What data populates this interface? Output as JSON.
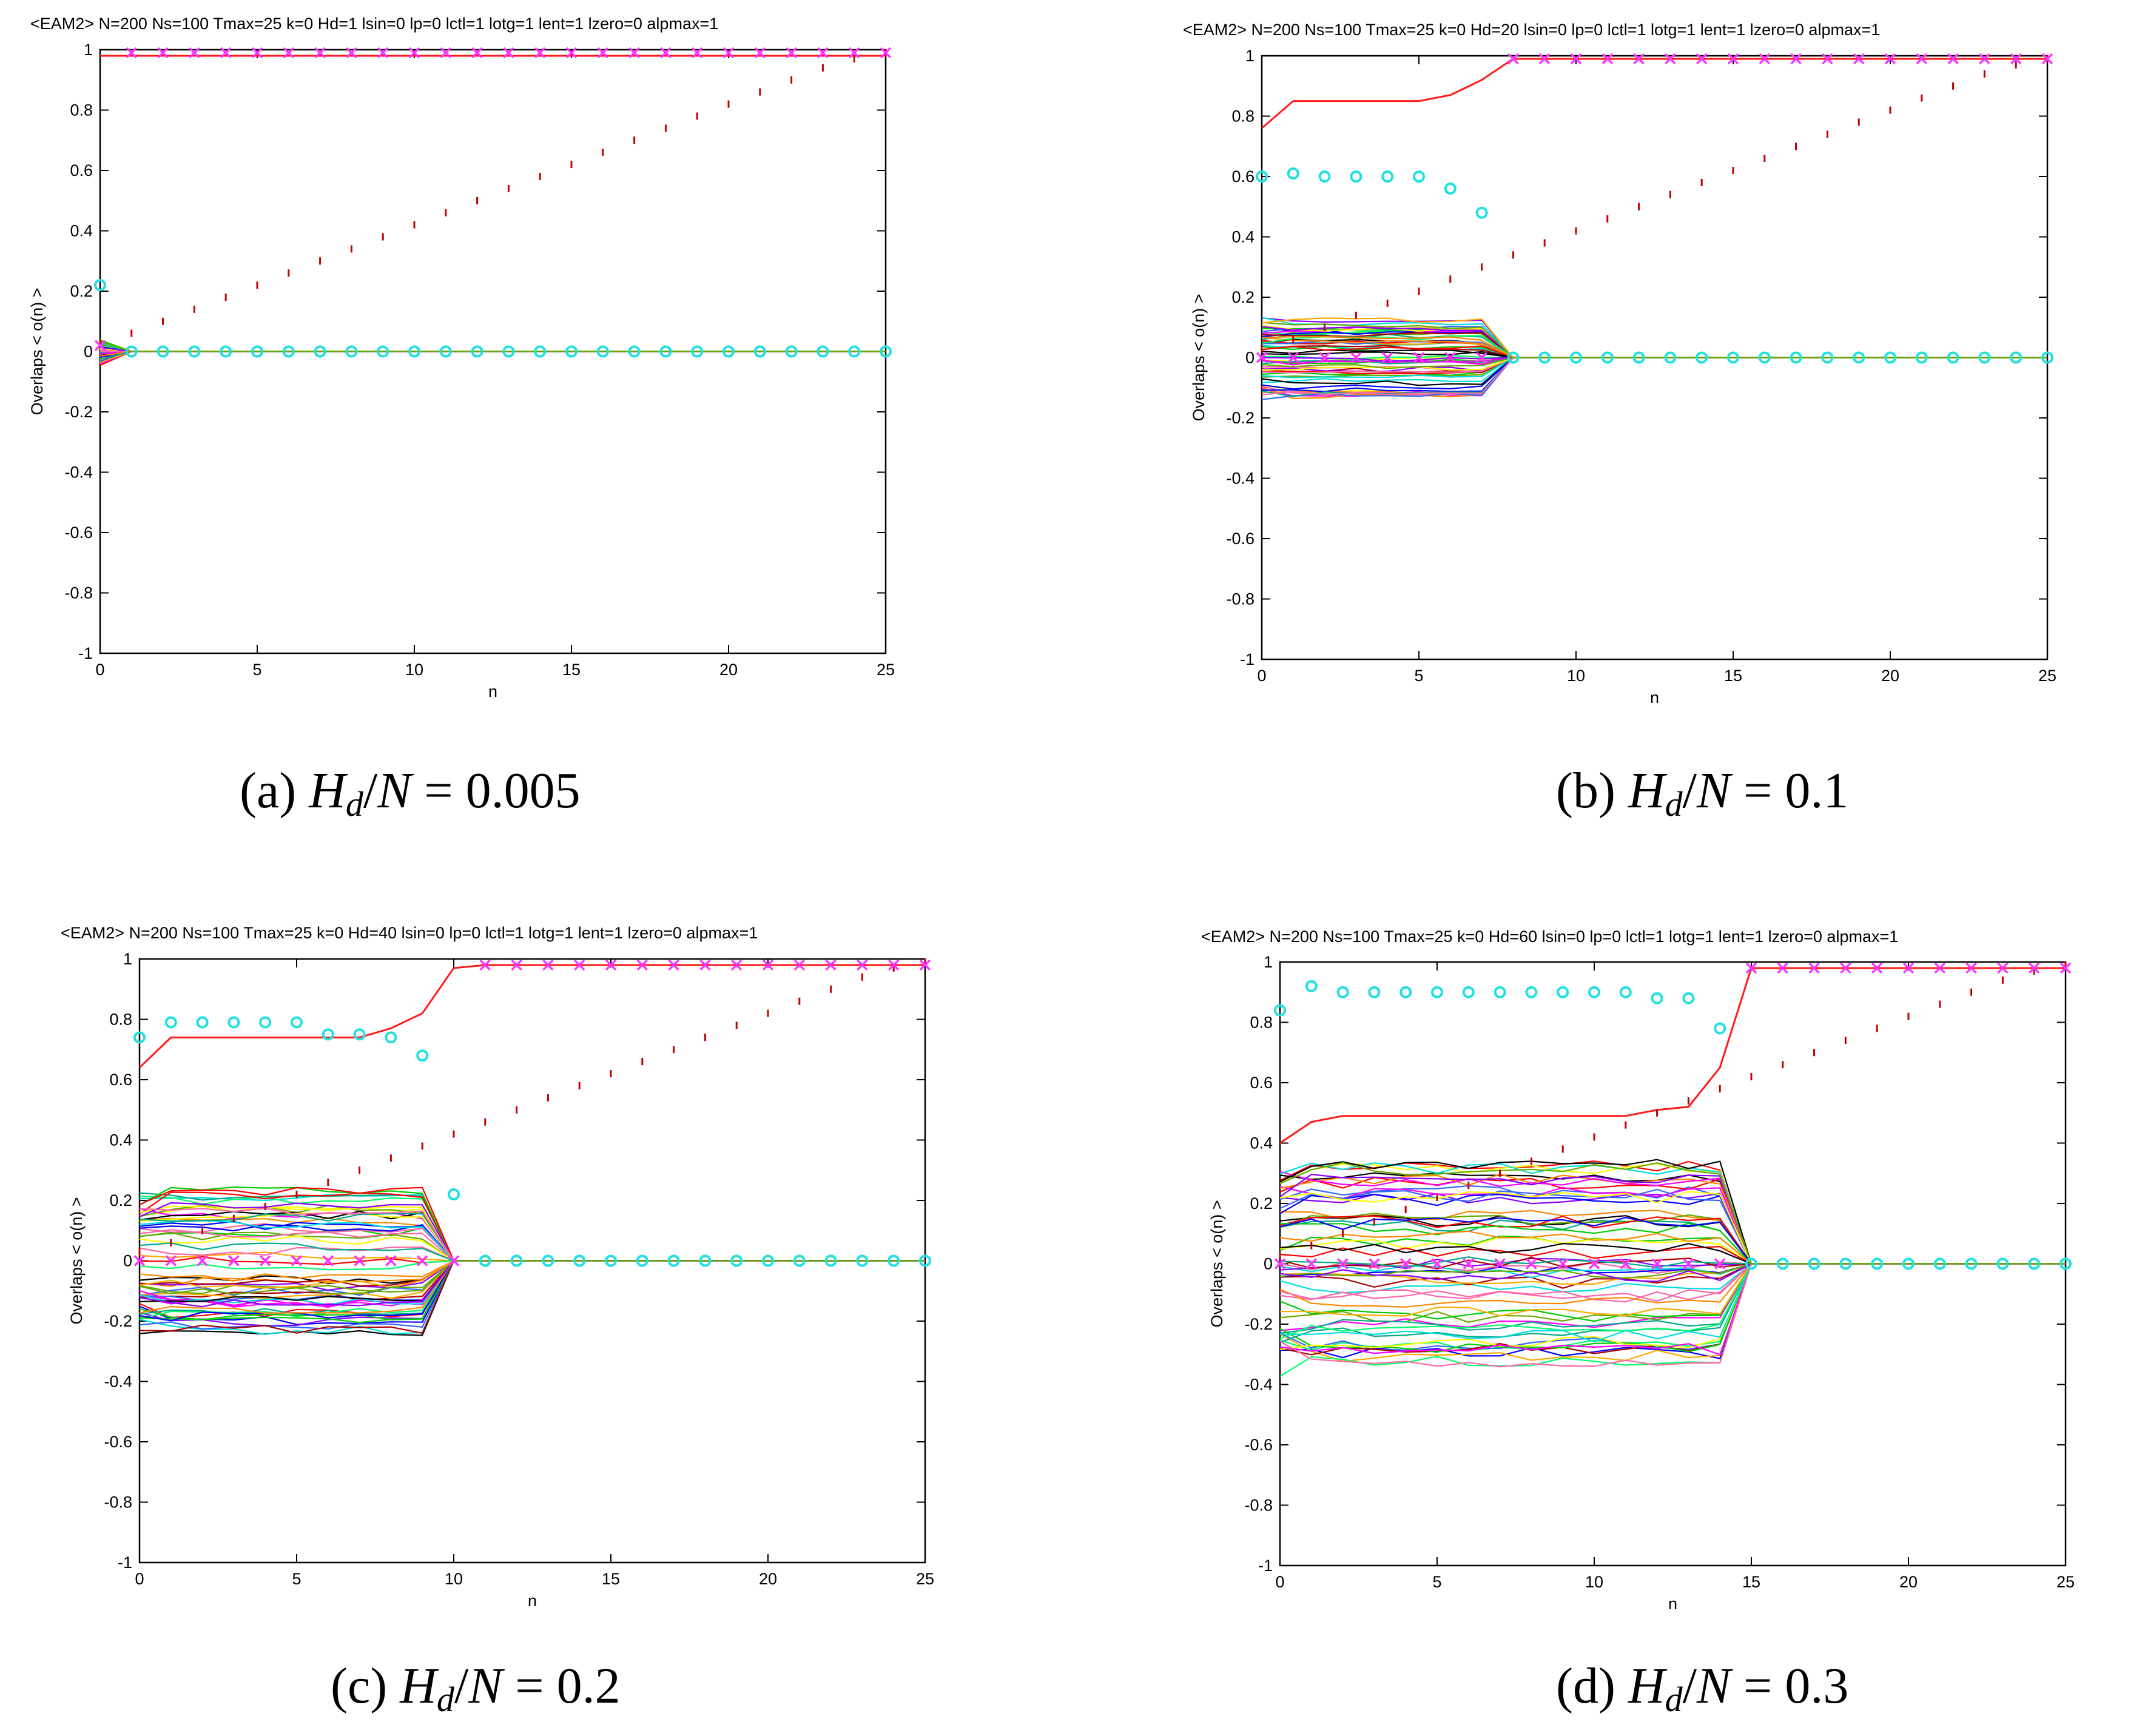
{
  "colors": {
    "axis": "#000000",
    "target_line": "#ff1a1a",
    "target_marker": "#ff33ff",
    "cyan_marker": "#22e0e0",
    "dash_marker": "#c00000",
    "palette": [
      "#ff0000",
      "#00cc00",
      "#0000ff",
      "#ff00ff",
      "#00dddd",
      "#ffff00",
      "#000000",
      "#ff8800",
      "#8800ff",
      "#00aa88",
      "#ff66aa",
      "#66aa00",
      "#3366ff",
      "#aa0000",
      "#ffaa00",
      "#00ff66"
    ]
  },
  "chart_data": [
    {
      "type": "line",
      "title": "<EAM2> N=200 Ns=100 Tmax=25 k=0 Hd=1 lsin=0 lp=0 lctl=1 lotg=1 lent=1 lzero=0 alpmax=1",
      "xlabel": "n",
      "ylabel": "Overlaps < o(n) >",
      "xlim": [
        0,
        25
      ],
      "ylim": [
        -1,
        1
      ],
      "xticks": [
        "0",
        "5",
        "10",
        "15",
        "20",
        "25"
      ],
      "yticks": [
        "1",
        "0.8",
        "0.6",
        "0.4",
        "0.2",
        "0",
        "-0.2",
        "-0.4",
        "-0.6",
        "-0.8",
        "-1"
      ],
      "caption": {
        "label": "(a)",
        "var": "H",
        "sub": "d",
        "mid": "/",
        "den": "N",
        "eq": " = 0.005"
      },
      "target_overlap": [
        0.98,
        0.98,
        0.98,
        0.98,
        0.98,
        0.98,
        0.98,
        0.98,
        0.98,
        0.98,
        0.98,
        0.98,
        0.98,
        0.98,
        0.98,
        0.98,
        0.98,
        0.98,
        0.98,
        0.98,
        0.98,
        0.98,
        0.98,
        0.98,
        0.98,
        0.98
      ],
      "pink_markers": [
        0.02,
        0.99,
        0.99,
        0.99,
        0.99,
        0.99,
        0.99,
        0.99,
        0.99,
        0.99,
        0.99,
        0.99,
        0.99,
        0.99,
        0.99,
        0.99,
        0.99,
        0.99,
        0.99,
        0.99,
        0.99,
        0.99,
        0.99,
        0.99,
        0.99,
        0.99
      ],
      "cyan_markers": [
        0.22,
        0.0,
        0.0,
        0.0,
        0.0,
        0.0,
        0.0,
        0.0,
        0.0,
        0.0,
        0.0,
        0.0,
        0.0,
        0.0,
        0.0,
        0.0,
        0.0,
        0.0,
        0.0,
        0.0,
        0.0,
        0.0,
        0.0,
        0.0,
        0.0,
        0.0
      ],
      "dash_markers": [
        0.03,
        0.06,
        0.1,
        0.14,
        0.18,
        0.22,
        0.26,
        0.3,
        0.34,
        0.38,
        0.42,
        0.46,
        0.5,
        0.54,
        0.58,
        0.62,
        0.66,
        0.7,
        0.74,
        0.78,
        0.82,
        0.86,
        0.9,
        0.94,
        0.97,
        0.99
      ],
      "spread": {
        "amplitude": 0.04,
        "converge_n": 1
      }
    },
    {
      "type": "line",
      "title": "<EAM2> N=200 Ns=100 Tmax=25 k=0 Hd=20 lsin=0 lp=0 lctl=1 lotg=1 lent=1 lzero=0 alpmax=1",
      "xlabel": "n",
      "ylabel": "Overlaps < o(n) >",
      "xlim": [
        0,
        25
      ],
      "ylim": [
        -1,
        1
      ],
      "xticks": [
        "0",
        "5",
        "10",
        "15",
        "20",
        "25"
      ],
      "yticks": [
        "1",
        "0.8",
        "0.6",
        "0.4",
        "0.2",
        "0",
        "-0.2",
        "-0.4",
        "-0.6",
        "-0.8",
        "-1"
      ],
      "caption": {
        "label": "(b)",
        "var": "H",
        "sub": "d",
        "mid": "/",
        "den": "N",
        "eq": " = 0.1"
      },
      "target_overlap": [
        0.76,
        0.85,
        0.85,
        0.85,
        0.85,
        0.85,
        0.87,
        0.92,
        0.99,
        0.99,
        0.99,
        0.99,
        0.99,
        0.99,
        0.99,
        0.99,
        0.99,
        0.99,
        0.99,
        0.99,
        0.99,
        0.99,
        0.99,
        0.99,
        0.99,
        0.99
      ],
      "pink_markers": [
        0.0,
        0.0,
        0.0,
        0.0,
        0.0,
        0.0,
        0.0,
        0.0,
        0.99,
        0.99,
        0.99,
        0.99,
        0.99,
        0.99,
        0.99,
        0.99,
        0.99,
        0.99,
        0.99,
        0.99,
        0.99,
        0.99,
        0.99,
        0.99,
        0.99,
        0.99
      ],
      "cyan_markers": [
        0.6,
        0.61,
        0.6,
        0.6,
        0.6,
        0.6,
        0.56,
        0.48,
        0.0,
        0.0,
        0.0,
        0.0,
        0.0,
        0.0,
        0.0,
        0.0,
        0.0,
        0.0,
        0.0,
        0.0,
        0.0,
        0.0,
        0.0,
        0.0,
        0.0,
        0.0
      ],
      "dash_markers": [
        0.03,
        0.06,
        0.1,
        0.14,
        0.18,
        0.22,
        0.26,
        0.3,
        0.34,
        0.38,
        0.42,
        0.46,
        0.5,
        0.54,
        0.58,
        0.62,
        0.66,
        0.7,
        0.74,
        0.78,
        0.82,
        0.86,
        0.9,
        0.94,
        0.97,
        0.99
      ],
      "spread": {
        "amplitude": 0.13,
        "converge_n": 8
      }
    },
    {
      "type": "line",
      "title": "<EAM2> N=200 Ns=100 Tmax=25 k=0 Hd=40 lsin=0 lp=0 lctl=1 lotg=1 lent=1 lzero=0 alpmax=1",
      "xlabel": "n",
      "ylabel": "Overlaps < o(n) >",
      "xlim": [
        0,
        25
      ],
      "ylim": [
        -1,
        1
      ],
      "xticks": [
        "0",
        "5",
        "10",
        "15",
        "20",
        "25"
      ],
      "yticks": [
        "1",
        "0.8",
        "0.6",
        "0.4",
        "0.2",
        "0",
        "-0.2",
        "-0.4",
        "-0.6",
        "-0.8",
        "-1"
      ],
      "caption": {
        "label": "(c)",
        "var": "H",
        "sub": "d",
        "mid": "/",
        "den": "N",
        "eq": " = 0.2"
      },
      "target_overlap": [
        0.64,
        0.74,
        0.74,
        0.74,
        0.74,
        0.74,
        0.74,
        0.74,
        0.77,
        0.82,
        0.97,
        0.98,
        0.98,
        0.98,
        0.98,
        0.98,
        0.98,
        0.98,
        0.98,
        0.98,
        0.98,
        0.98,
        0.98,
        0.98,
        0.98,
        0.98
      ],
      "pink_markers": [
        0.0,
        0.0,
        0.0,
        0.0,
        0.0,
        0.0,
        0.0,
        0.0,
        0.0,
        0.0,
        0.0,
        0.98,
        0.98,
        0.98,
        0.98,
        0.98,
        0.98,
        0.98,
        0.98,
        0.98,
        0.98,
        0.98,
        0.98,
        0.98,
        0.98,
        0.98
      ],
      "cyan_markers": [
        0.74,
        0.79,
        0.79,
        0.79,
        0.79,
        0.79,
        0.75,
        0.75,
        0.74,
        0.68,
        0.22,
        0.0,
        0.0,
        0.0,
        0.0,
        0.0,
        0.0,
        0.0,
        0.0,
        0.0,
        0.0,
        0.0,
        0.0,
        0.0,
        0.0,
        0.0
      ],
      "dash_markers": [
        0.03,
        0.06,
        0.1,
        0.14,
        0.18,
        0.22,
        0.26,
        0.3,
        0.34,
        0.38,
        0.42,
        0.46,
        0.5,
        0.54,
        0.58,
        0.62,
        0.66,
        0.7,
        0.74,
        0.78,
        0.82,
        0.86,
        0.9,
        0.94,
        0.97,
        0.99
      ],
      "spread": {
        "amplitude": 0.24,
        "converge_n": 10
      }
    },
    {
      "type": "line",
      "title": "<EAM2> N=200 Ns=100 Tmax=25 k=0 Hd=60 lsin=0 lp=0 lctl=1 lotg=1 lent=1 lzero=0 alpmax=1",
      "xlabel": "n",
      "ylabel": "Overlaps < o(n) >",
      "xlim": [
        0,
        25
      ],
      "ylim": [
        -1,
        1
      ],
      "xticks": [
        "0",
        "5",
        "10",
        "15",
        "20",
        "25"
      ],
      "yticks": [
        "1",
        "0.8",
        "0.6",
        "0.4",
        "0.2",
        "0",
        "-0.2",
        "-0.4",
        "-0.6",
        "-0.8",
        "-1"
      ],
      "caption": {
        "label": "(d)",
        "var": "H",
        "sub": "d",
        "mid": "/",
        "den": "N",
        "eq": " = 0.3"
      },
      "target_overlap": [
        0.4,
        0.47,
        0.49,
        0.49,
        0.49,
        0.49,
        0.49,
        0.49,
        0.49,
        0.49,
        0.49,
        0.49,
        0.51,
        0.52,
        0.65,
        0.98,
        0.98,
        0.98,
        0.98,
        0.98,
        0.98,
        0.98,
        0.98,
        0.98,
        0.98,
        0.98
      ],
      "pink_markers": [
        0.0,
        0.0,
        0.0,
        0.0,
        0.0,
        0.0,
        0.0,
        0.0,
        0.0,
        0.0,
        0.0,
        0.0,
        0.0,
        0.0,
        0.0,
        0.98,
        0.98,
        0.98,
        0.98,
        0.98,
        0.98,
        0.98,
        0.98,
        0.98,
        0.98,
        0.98
      ],
      "cyan_markers": [
        0.84,
        0.92,
        0.9,
        0.9,
        0.9,
        0.9,
        0.9,
        0.9,
        0.9,
        0.9,
        0.9,
        0.9,
        0.88,
        0.88,
        0.78,
        0.0,
        0.0,
        0.0,
        0.0,
        0.0,
        0.0,
        0.0,
        0.0,
        0.0,
        0.0,
        0.0
      ],
      "dash_markers": [
        0.03,
        0.06,
        0.1,
        0.14,
        0.18,
        0.22,
        0.26,
        0.3,
        0.34,
        0.38,
        0.42,
        0.46,
        0.5,
        0.54,
        0.58,
        0.62,
        0.66,
        0.7,
        0.74,
        0.78,
        0.82,
        0.86,
        0.9,
        0.94,
        0.97,
        0.99
      ],
      "spread": {
        "amplitude": 0.34,
        "converge_n": 15
      }
    }
  ]
}
